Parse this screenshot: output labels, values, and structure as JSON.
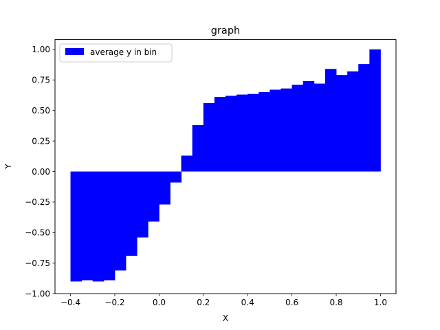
{
  "chart_data": {
    "type": "bar",
    "title": "graph",
    "xlabel": "X",
    "ylabel": "Y",
    "xlim": [
      -0.47,
      1.07
    ],
    "ylim": [
      -1.0,
      1.08
    ],
    "bin_width": 0.05,
    "bar_color": "#0000ff",
    "grid": false,
    "legend_position": "top-left",
    "xticks": [
      -0.4,
      -0.2,
      0.0,
      0.2,
      0.4,
      0.6,
      0.8,
      1.0
    ],
    "xtick_labels": [
      "−0.4",
      "−0.2",
      "0.0",
      "0.2",
      "0.4",
      "0.6",
      "0.8",
      "1.0"
    ],
    "yticks": [
      -1.0,
      -0.75,
      -0.5,
      -0.25,
      0.0,
      0.25,
      0.5,
      0.75,
      1.0
    ],
    "ytick_labels": [
      "−1.00",
      "−0.75",
      "−0.50",
      "−0.25",
      "0.00",
      "0.25",
      "0.50",
      "0.75",
      "1.00"
    ],
    "series": [
      {
        "name": "average y in bin",
        "x": [
          -0.4,
          -0.35,
          -0.3,
          -0.25,
          -0.2,
          -0.15,
          -0.1,
          -0.05,
          0.0,
          0.05,
          0.1,
          0.15,
          0.2,
          0.25,
          0.3,
          0.35,
          0.4,
          0.45,
          0.5,
          0.55,
          0.6,
          0.65,
          0.7,
          0.75,
          0.8,
          0.85,
          0.9,
          0.95
        ],
        "values": [
          -0.9,
          -0.89,
          -0.9,
          -0.89,
          -0.81,
          -0.69,
          -0.54,
          -0.41,
          -0.27,
          -0.09,
          0.13,
          0.38,
          0.56,
          0.61,
          0.62,
          0.63,
          0.635,
          0.65,
          0.67,
          0.68,
          0.71,
          0.74,
          0.72,
          0.84,
          0.79,
          0.82,
          0.88,
          1.0
        ]
      }
    ]
  }
}
